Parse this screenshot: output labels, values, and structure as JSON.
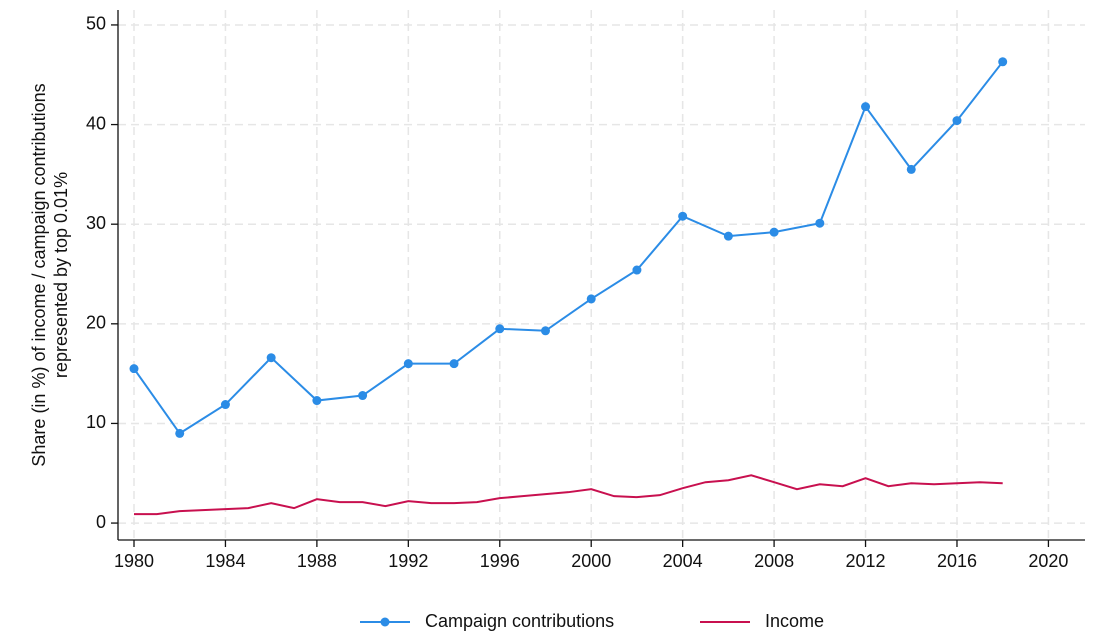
{
  "chart_data": {
    "type": "line",
    "ylabel": [
      "Share (in %) of income / campaign contributions",
      "represented by top 0.01%"
    ],
    "xlim": [
      1979.3,
      2021.6
    ],
    "xticks": [
      1980,
      1984,
      1988,
      1992,
      1996,
      2000,
      2004,
      2008,
      2012,
      2016,
      2020
    ],
    "ylim": [
      -1.7,
      51.5
    ],
    "yticks": [
      0,
      10,
      20,
      30,
      40,
      50
    ],
    "grid": true,
    "legend": "bottom",
    "series": [
      {
        "name": "Campaign contributions",
        "color": "#2b8ce6",
        "markers": true,
        "x": [
          1980,
          1982,
          1984,
          1986,
          1988,
          1990,
          1992,
          1994,
          1996,
          1998,
          2000,
          2002,
          2004,
          2006,
          2008,
          2010,
          2012,
          2014,
          2016,
          2018
        ],
        "values": [
          15.5,
          9.0,
          11.9,
          16.6,
          12.3,
          12.8,
          16.0,
          16.0,
          19.5,
          19.3,
          22.5,
          25.4,
          30.8,
          28.8,
          29.2,
          30.1,
          41.8,
          35.5,
          40.4,
          46.3
        ]
      },
      {
        "name": "Income",
        "color": "#c8104f",
        "markers": false,
        "x": [
          1980,
          1981,
          1982,
          1983,
          1984,
          1985,
          1986,
          1987,
          1988,
          1989,
          1990,
          1991,
          1992,
          1993,
          1994,
          1995,
          1996,
          1997,
          1998,
          1999,
          2000,
          2001,
          2002,
          2003,
          2004,
          2005,
          2006,
          2007,
          2008,
          2009,
          2010,
          2011,
          2012,
          2013,
          2014,
          2015,
          2016,
          2017,
          2018
        ],
        "values": [
          0.9,
          0.9,
          1.2,
          1.3,
          1.4,
          1.5,
          2.0,
          1.5,
          2.4,
          2.1,
          2.1,
          1.7,
          2.2,
          2.0,
          2.0,
          2.1,
          2.5,
          2.7,
          2.9,
          3.1,
          3.4,
          2.7,
          2.6,
          2.8,
          3.5,
          4.1,
          4.3,
          4.8,
          4.1,
          3.4,
          3.9,
          3.7,
          4.5,
          3.7,
          4.0,
          3.9,
          4.0,
          4.1,
          4.0
        ]
      }
    ]
  }
}
